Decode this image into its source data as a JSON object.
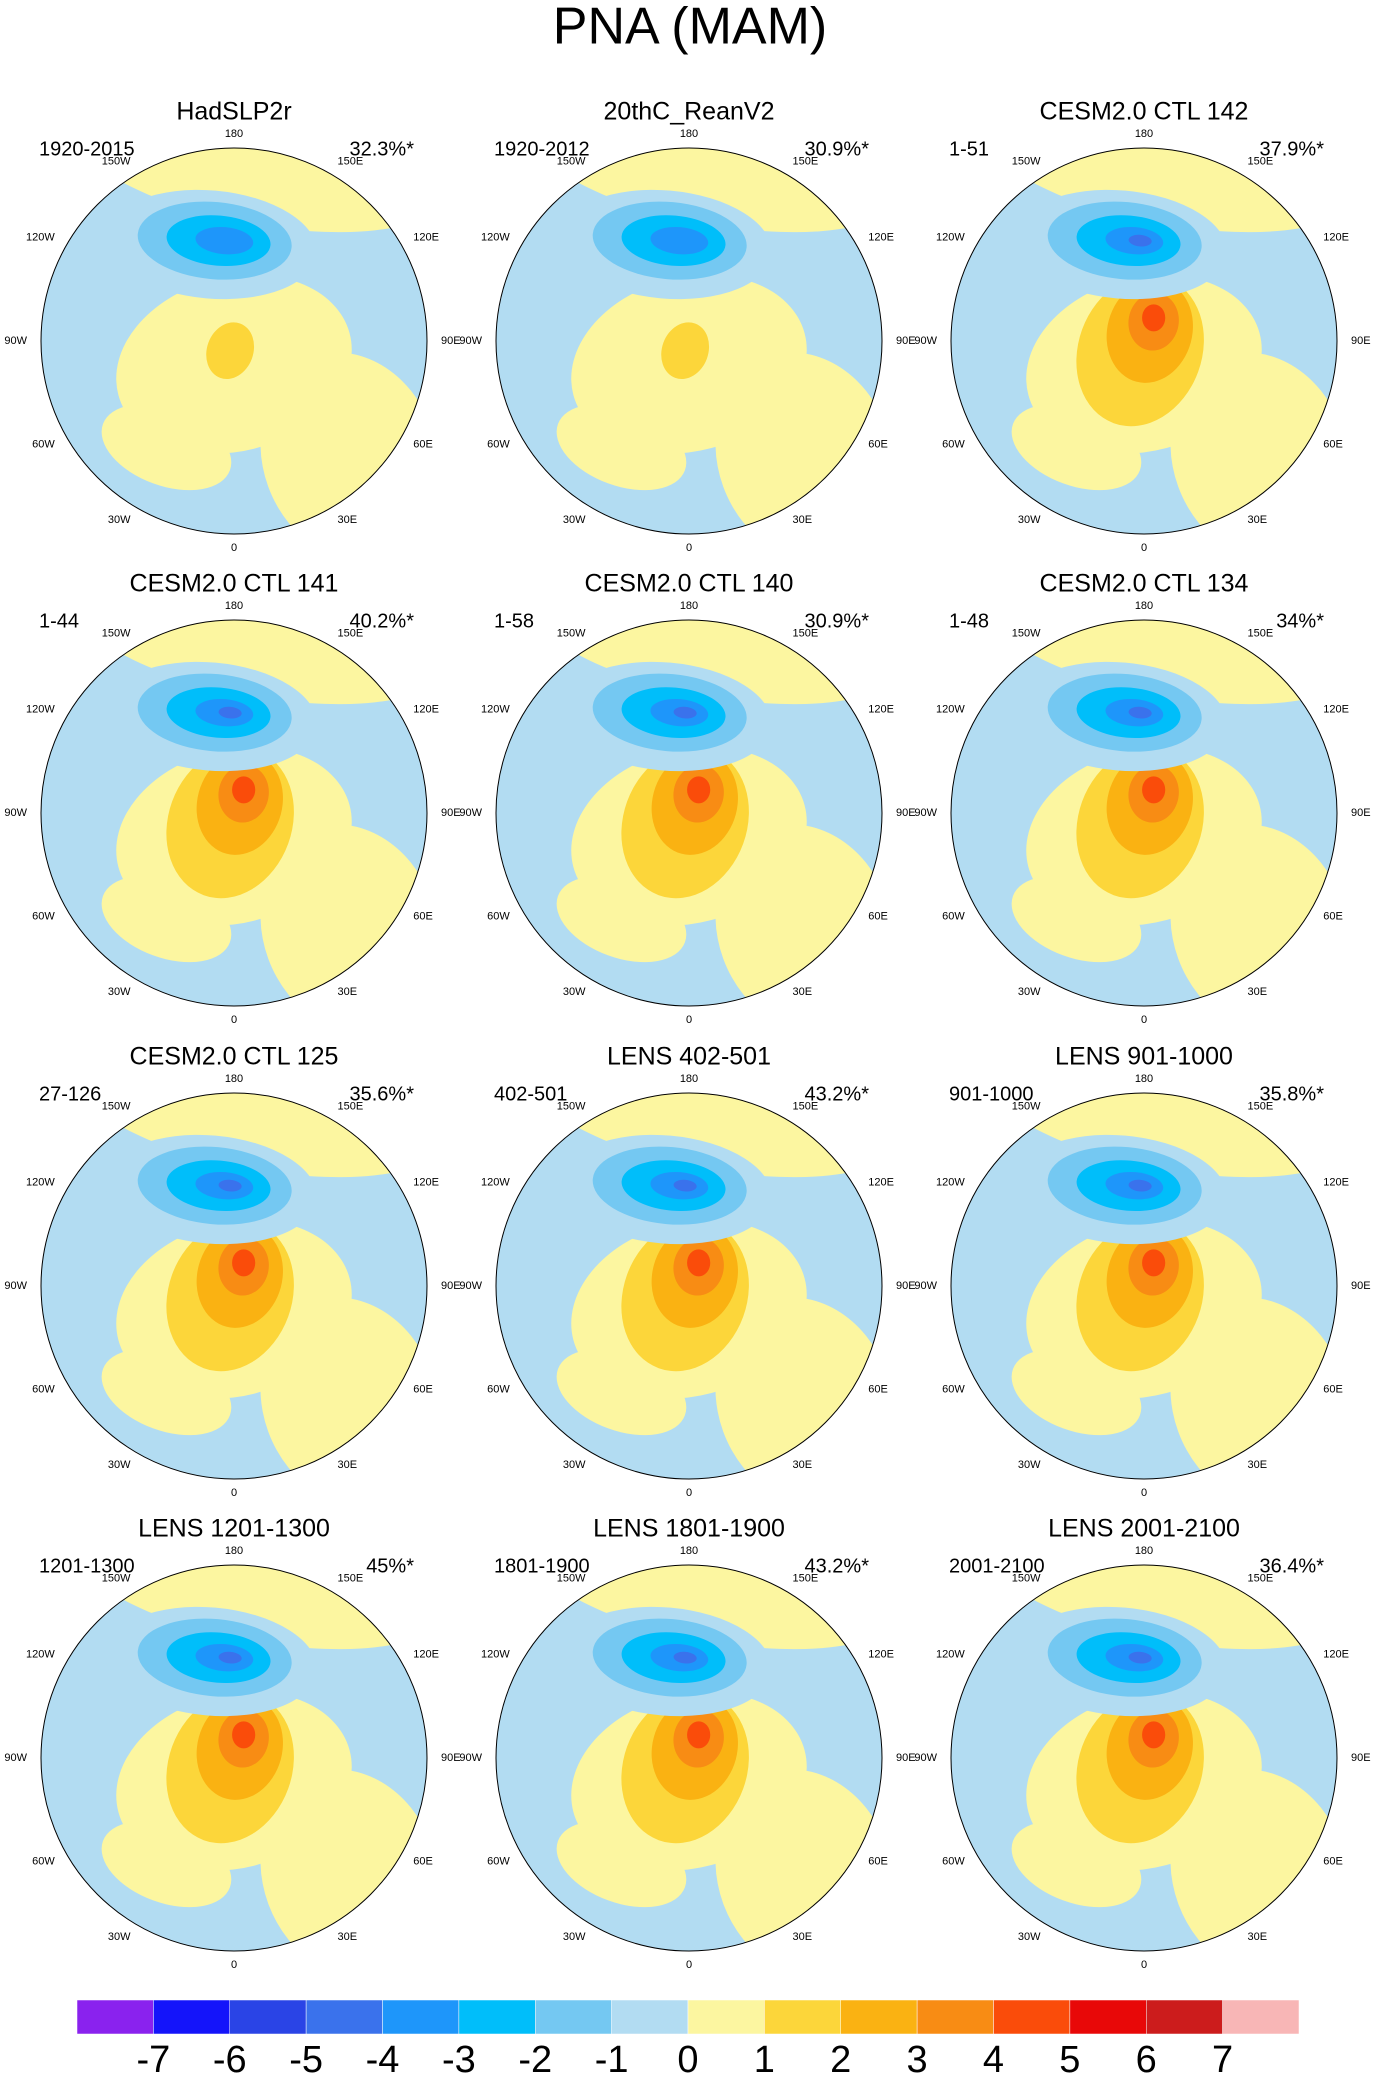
{
  "title": "PNA (MAM)",
  "panels": [
    {
      "title": "HadSLP2r",
      "period": "1920-2015",
      "percent": "32.3%*"
    },
    {
      "title": "20thC_ReanV2",
      "period": "1920-2012",
      "percent": "30.9%*"
    },
    {
      "title": "CESM2.0 CTL 142",
      "period": "1-51",
      "percent": "37.9%*"
    },
    {
      "title": "CESM2.0 CTL 141",
      "period": "1-44",
      "percent": "40.2%*"
    },
    {
      "title": "CESM2.0 CTL 140",
      "period": "1-58",
      "percent": "30.9%*"
    },
    {
      "title": "CESM2.0 CTL 134",
      "period": "1-48",
      "percent": "34%*"
    },
    {
      "title": "CESM2.0 CTL 125",
      "period": "27-126",
      "percent": "35.6%*"
    },
    {
      "title": "LENS 402-501",
      "period": "402-501",
      "percent": "43.2%*"
    },
    {
      "title": "LENS 901-1000",
      "period": "901-1000",
      "percent": "35.8%*"
    },
    {
      "title": "LENS 1201-1300",
      "period": "1201-1300",
      "percent": "45%*"
    },
    {
      "title": "LENS 1801-1900",
      "period": "1801-1900",
      "percent": "43.2%*"
    },
    {
      "title": "LENS 2001-2100",
      "period": "2001-2100",
      "percent": "36.4%*"
    }
  ],
  "longitude_labels": [
    "0",
    "30E",
    "60E",
    "90E",
    "120E",
    "150E",
    "180",
    "150W",
    "120W",
    "90W",
    "60W",
    "30W"
  ],
  "colorbar": {
    "colors": [
      "#8a22ee",
      "#1414fa",
      "#2a44e6",
      "#3a72ec",
      "#1e96fa",
      "#00befa",
      "#74c8f2",
      "#b2dcf2",
      "#fcf6a0",
      "#fcd63a",
      "#fab212",
      "#f88c14",
      "#fa4c0a",
      "#e80808",
      "#cc1c1c",
      "#f8b6b6"
    ],
    "ticks": [
      -7,
      -6,
      -5,
      -4,
      -3,
      -2,
      -1,
      0,
      1,
      2,
      3,
      4,
      5,
      6,
      7
    ]
  }
}
